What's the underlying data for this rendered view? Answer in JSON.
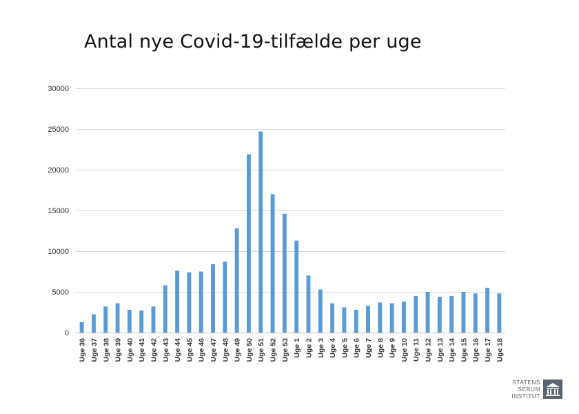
{
  "title": "Antal nye Covid-19-tilfælde per uge",
  "logo": {
    "lines": [
      "STATENS",
      "SERUM",
      "INSTITUT"
    ],
    "icon": "ssi-building-emblem-icon",
    "color": "#5b6470"
  },
  "chart_data": {
    "type": "bar",
    "title": "Antal nye Covid-19-tilfælde per uge",
    "xlabel": "",
    "ylabel": "",
    "ylim": [
      0,
      30000
    ],
    "yticks": [
      0,
      5000,
      10000,
      15000,
      20000,
      25000,
      30000
    ],
    "grid": true,
    "bar_color": "#5b9bd5",
    "categories": [
      "Uge 36",
      "Uge 37",
      "Uge 38",
      "Uge 39",
      "Uge 40",
      "Uge 41",
      "Uge 42",
      "Uge 43",
      "Uge 44",
      "Uge 45",
      "Uge 46",
      "Uge 47",
      "Uge 48",
      "Uge 49",
      "Uge 50",
      "Uge 51",
      "Uge 52",
      "Uge 53",
      "Uge 1",
      "Uge 2",
      "Uge 3",
      "Uge 4",
      "Uge 5",
      "Uge 6",
      "Uge 7",
      "Uge 8",
      "Uge 9",
      "Uge 10",
      "Uge 11",
      "Uge 12",
      "Uge 13",
      "Uge 14",
      "Uge 15",
      "Uge 16",
      "Uge 17",
      "Uge 18"
    ],
    "values": [
      1300,
      2250,
      3200,
      3600,
      2800,
      2700,
      3200,
      5800,
      7600,
      7400,
      7500,
      8400,
      8700,
      12800,
      21900,
      24700,
      17000,
      14600,
      11300,
      7000,
      5300,
      3600,
      3100,
      2800,
      3300,
      3700,
      3600,
      3800,
      4500,
      5000,
      4400,
      4500,
      5000,
      4800,
      5500,
      4800
    ]
  }
}
